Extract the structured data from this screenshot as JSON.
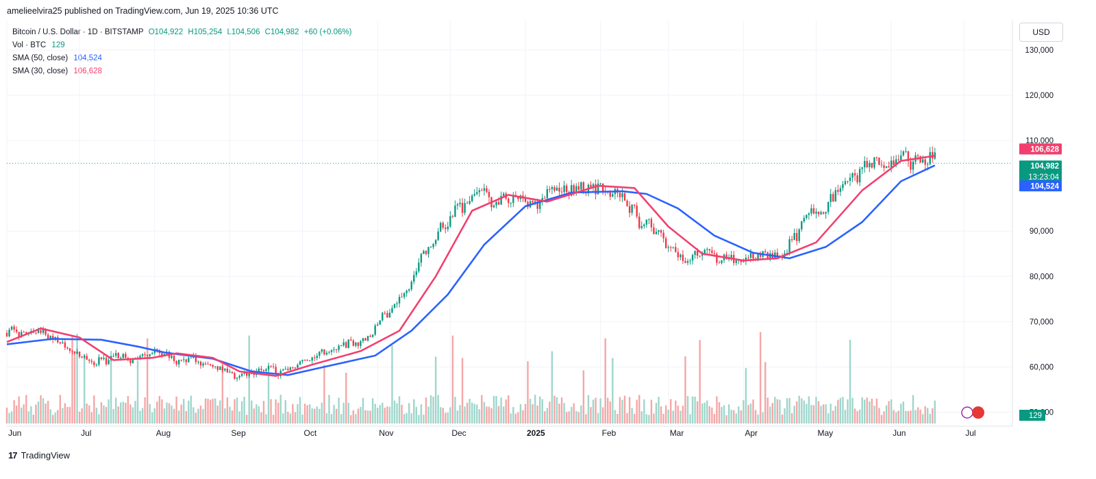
{
  "header": {
    "published_line": "amelieelvira25 published on TradingView.com, Jun 19, 2025 10:36 UTC"
  },
  "legend": {
    "symbol": "Bitcoin / U.S. Dollar · 1D · BITSTAMP",
    "open": "O104,922",
    "high": "H105,254",
    "low": "L104,506",
    "close": "C104,982",
    "change": "+60 (+0.06%)",
    "vol_label": "Vol · BTC",
    "vol_value": "129",
    "sma50_label": "SMA (50, close)",
    "sma50_value": "104,524",
    "sma30_label": "SMA (30, close)",
    "sma30_value": "106,628"
  },
  "currency_button": "USD",
  "price_tags": {
    "sma30": "106,628",
    "last": "104,982",
    "countdown": "13:23:04",
    "sma50": "104,524",
    "volume": "129"
  },
  "footer": {
    "logo": "17",
    "brand": "TradingView"
  },
  "colors": {
    "up": "#089981",
    "down": "#f23645",
    "sma50": "#2962ff",
    "sma30": "#f23f6e",
    "vol_up": "#9ed6cb",
    "vol_down": "#f5a6a6"
  },
  "chart_data": {
    "type": "candlestick",
    "symbol": "Bitcoin / U.S. Dollar",
    "interval": "1D",
    "exchange": "BITSTAMP",
    "ylim": [
      47500,
      136500
    ],
    "y_ticks": [
      "130,000",
      "120,000",
      "110,000",
      "90,000",
      "80,000",
      "70,000",
      "60,000",
      "50,000"
    ],
    "x_ticks": [
      "Jun",
      "Jul",
      "Aug",
      "Sep",
      "Oct",
      "Nov",
      "Dec",
      "2025",
      "Feb",
      "Mar",
      "Apr",
      "May",
      "Jun",
      "Jul"
    ],
    "series": [
      {
        "name": "SMA (50, close)",
        "points": [
          [
            "2024-06-01",
            65000
          ],
          [
            "2024-06-20",
            66200
          ],
          [
            "2024-07-10",
            66000
          ],
          [
            "2024-07-25",
            64500
          ],
          [
            "2024-08-05",
            63200
          ],
          [
            "2024-08-25",
            61800
          ],
          [
            "2024-09-10",
            59000
          ],
          [
            "2024-09-25",
            58200
          ],
          [
            "2024-10-10",
            60000
          ],
          [
            "2024-10-31",
            62500
          ],
          [
            "2024-11-15",
            68000
          ],
          [
            "2024-11-30",
            76000
          ],
          [
            "2024-12-15",
            87000
          ],
          [
            "2025-01-01",
            95500
          ],
          [
            "2025-01-20",
            98500
          ],
          [
            "2025-02-10",
            98800
          ],
          [
            "2025-02-20",
            98200
          ],
          [
            "2025-03-05",
            95000
          ],
          [
            "2025-03-20",
            89000
          ],
          [
            "2025-04-05",
            85200
          ],
          [
            "2025-04-20",
            84000
          ],
          [
            "2025-05-05",
            86500
          ],
          [
            "2025-05-20",
            92000
          ],
          [
            "2025-06-05",
            101000
          ],
          [
            "2025-06-19",
            104524
          ]
        ]
      },
      {
        "name": "SMA (30, close)",
        "points": [
          [
            "2024-06-01",
            65500
          ],
          [
            "2024-06-15",
            68500
          ],
          [
            "2024-07-01",
            66500
          ],
          [
            "2024-07-15",
            61500
          ],
          [
            "2024-07-31",
            62000
          ],
          [
            "2024-08-10",
            63000
          ],
          [
            "2024-08-25",
            62000
          ],
          [
            "2024-09-05",
            59000
          ],
          [
            "2024-09-20",
            58000
          ],
          [
            "2024-10-05",
            60500
          ],
          [
            "2024-10-25",
            63500
          ],
          [
            "2024-11-10",
            68000
          ],
          [
            "2024-11-25",
            80000
          ],
          [
            "2024-12-10",
            94500
          ],
          [
            "2024-12-25",
            98000
          ],
          [
            "2025-01-10",
            96500
          ],
          [
            "2025-01-31",
            100000
          ],
          [
            "2025-02-15",
            99500
          ],
          [
            "2025-03-01",
            91000
          ],
          [
            "2025-03-15",
            85000
          ],
          [
            "2025-04-01",
            83500
          ],
          [
            "2025-04-15",
            84000
          ],
          [
            "2025-05-01",
            87500
          ],
          [
            "2025-05-20",
            99000
          ],
          [
            "2025-06-05",
            105500
          ],
          [
            "2025-06-19",
            106628
          ]
        ]
      }
    ],
    "volume_last": 129,
    "last_close": 104982
  }
}
